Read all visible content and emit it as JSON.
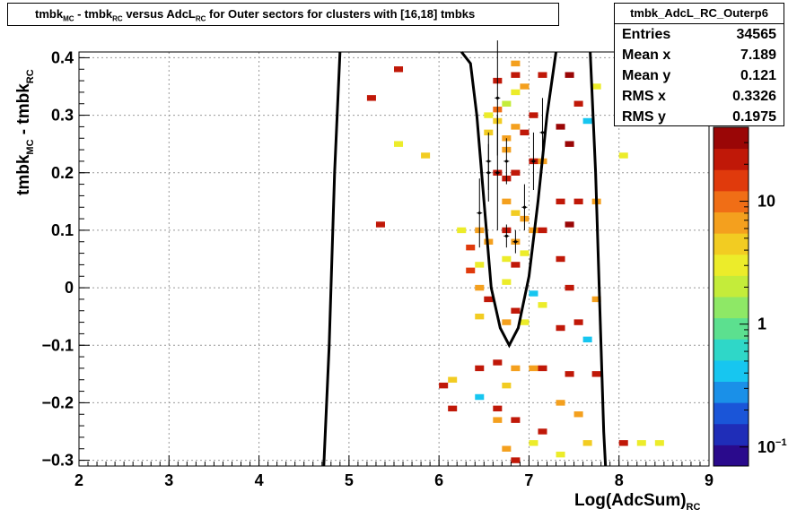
{
  "title": {
    "parts": [
      {
        "t": "tmbk",
        "s": false
      },
      {
        "t": "MC",
        "s": true
      },
      {
        "t": " - tmbk",
        "s": false
      },
      {
        "t": "RC",
        "s": true
      },
      {
        "t": " versus AdcL",
        "s": false
      },
      {
        "t": "RC",
        "s": true
      },
      {
        "t": " for Outer sectors for clusters with [16,18] tmbks",
        "s": false
      }
    ]
  },
  "stats": {
    "name": "tmbk_AdcL_RC_Outerp6",
    "rows": [
      {
        "label": "Entries",
        "value": "34565"
      },
      {
        "label": "Mean x",
        "value": "7.189"
      },
      {
        "label": "Mean y",
        "value": "0.121"
      },
      {
        "label": "RMS x",
        "value": "0.3326"
      },
      {
        "label": "RMS y",
        "value": "0.1975"
      }
    ]
  },
  "chart_data": {
    "type": "heatmap",
    "xlabel_parts": [
      {
        "t": "Log(AdcSum)",
        "s": false
      },
      {
        "t": "RC",
        "s": true
      }
    ],
    "ylabel_parts": [
      {
        "t": "tmbk",
        "s": false
      },
      {
        "t": "MC",
        "s": true
      },
      {
        "t": " - tmbk",
        "s": false
      },
      {
        "t": "RC",
        "s": true
      }
    ],
    "xlim": [
      2,
      9
    ],
    "ylim": [
      -0.31,
      0.41
    ],
    "xticks": [
      2,
      3,
      4,
      5,
      6,
      7,
      8,
      9
    ],
    "xtick_labels": [
      "2",
      "3",
      "4",
      "5",
      "6",
      "7",
      "8",
      "9"
    ],
    "yticks": [
      -0.3,
      -0.2,
      -0.1,
      0,
      0.1,
      0.2,
      0.3,
      0.4
    ],
    "ytick_labels": [
      "−0.3",
      "−0.2",
      "−0.1",
      "0",
      "0.1",
      "0.2",
      "0.3",
      "0.4"
    ],
    "grid": true,
    "z_scale": "log",
    "zlim": [
      0.07,
      40
    ],
    "z_tick_labels": [
      {
        "value": 10,
        "label": "10",
        "sup": ""
      },
      {
        "value": 1,
        "label": "1",
        "sup": ""
      },
      {
        "value": 0.1,
        "label": "10",
        "sup": "−1"
      }
    ],
    "cells": [
      [
        5.55,
        0.38,
        25
      ],
      [
        5.25,
        0.33,
        25
      ],
      [
        5.55,
        0.25,
        3
      ],
      [
        5.85,
        0.23,
        5
      ],
      [
        5.35,
        0.11,
        25
      ],
      [
        6.25,
        0.1,
        3
      ],
      [
        6.35,
        0.07,
        15
      ],
      [
        6.35,
        0.03,
        15
      ],
      [
        6.45,
        0.1,
        8
      ],
      [
        6.55,
        0.08,
        8
      ],
      [
        6.65,
        0.36,
        25
      ],
      [
        6.65,
        0.31,
        10
      ],
      [
        6.55,
        0.3,
        3
      ],
      [
        6.55,
        0.27,
        5
      ],
      [
        6.65,
        0.29,
        5
      ],
      [
        6.75,
        0.26,
        8
      ],
      [
        6.85,
        0.39,
        8
      ],
      [
        6.85,
        0.37,
        25
      ],
      [
        6.85,
        0.34,
        3
      ],
      [
        6.75,
        0.32,
        2
      ],
      [
        6.85,
        0.28,
        8
      ],
      [
        6.75,
        0.24,
        8
      ],
      [
        6.65,
        0.2,
        25
      ],
      [
        6.75,
        0.19,
        25
      ],
      [
        6.85,
        0.2,
        25
      ],
      [
        6.75,
        0.15,
        8
      ],
      [
        6.85,
        0.13,
        4
      ],
      [
        6.75,
        0.1,
        25
      ],
      [
        6.85,
        0.08,
        8
      ],
      [
        6.75,
        0.05,
        3
      ],
      [
        6.85,
        0.04,
        25
      ],
      [
        6.75,
        0.01,
        3
      ],
      [
        6.45,
        0.04,
        3
      ],
      [
        6.45,
        0.0,
        8
      ],
      [
        6.55,
        -0.02,
        25
      ],
      [
        6.45,
        -0.05,
        5
      ],
      [
        6.75,
        -0.06,
        8
      ],
      [
        6.85,
        -0.04,
        25
      ],
      [
        6.65,
        -0.13,
        25
      ],
      [
        6.45,
        -0.14,
        25
      ],
      [
        6.45,
        -0.19,
        0.4
      ],
      [
        6.85,
        -0.14,
        8
      ],
      [
        6.75,
        -0.17,
        5
      ],
      [
        6.65,
        -0.21,
        25
      ],
      [
        6.65,
        -0.23,
        8
      ],
      [
        6.85,
        -0.23,
        25
      ],
      [
        6.75,
        -0.28,
        8
      ],
      [
        6.85,
        -0.3,
        25
      ],
      [
        6.05,
        -0.17,
        25
      ],
      [
        6.15,
        -0.16,
        5
      ],
      [
        6.15,
        -0.21,
        25
      ],
      [
        6.95,
        -0.06,
        3
      ],
      [
        6.95,
        0.06,
        3
      ],
      [
        6.95,
        0.12,
        8
      ],
      [
        6.95,
        0.35,
        8
      ],
      [
        6.95,
        0.27,
        25
      ],
      [
        8.05,
        0.23,
        3
      ],
      [
        8.05,
        -0.27,
        25
      ],
      [
        8.25,
        -0.27,
        3
      ],
      [
        8.45,
        -0.27,
        3
      ],
      [
        7.05,
        0.3,
        25
      ],
      [
        7.05,
        0.22,
        25
      ],
      [
        7.05,
        0.1,
        8
      ],
      [
        7.05,
        -0.01,
        0.4
      ],
      [
        7.05,
        -0.14,
        8
      ],
      [
        7.05,
        -0.27,
        3
      ],
      [
        7.15,
        0.37,
        25
      ],
      [
        7.15,
        0.22,
        8
      ],
      [
        7.15,
        0.1,
        25
      ],
      [
        7.15,
        -0.03,
        3
      ],
      [
        7.15,
        -0.14,
        25
      ],
      [
        7.15,
        -0.25,
        25
      ],
      [
        7.45,
        0.37,
        40
      ],
      [
        7.55,
        0.32,
        25
      ],
      [
        7.45,
        0.25,
        40
      ],
      [
        7.55,
        0.15,
        25
      ],
      [
        7.65,
        0.29,
        0.4
      ],
      [
        7.45,
        0.11,
        40
      ],
      [
        7.45,
        0.0,
        25
      ],
      [
        7.55,
        -0.06,
        25
      ],
      [
        7.65,
        -0.09,
        0.4
      ],
      [
        7.45,
        -0.15,
        25
      ],
      [
        7.55,
        -0.22,
        8
      ],
      [
        7.65,
        -0.27,
        5
      ],
      [
        7.75,
        0.35,
        3
      ],
      [
        7.75,
        0.15,
        8
      ],
      [
        7.75,
        -0.02,
        8
      ],
      [
        7.75,
        -0.15,
        25
      ],
      [
        7.35,
        0.28,
        40
      ],
      [
        7.35,
        0.15,
        25
      ],
      [
        7.35,
        0.05,
        25
      ],
      [
        7.35,
        -0.07,
        25
      ],
      [
        7.35,
        -0.2,
        8
      ],
      [
        7.35,
        -0.29,
        3
      ]
    ],
    "points": [
      [
        6.45,
        0.13,
        0.06
      ],
      [
        6.55,
        0.2,
        0.05
      ],
      [
        6.55,
        0.22,
        0.05
      ],
      [
        6.65,
        0.33,
        0.1
      ],
      [
        6.65,
        0.2,
        0.1
      ],
      [
        6.75,
        0.22,
        0.04
      ],
      [
        6.75,
        0.09,
        0.02
      ],
      [
        6.85,
        0.08,
        0.02
      ],
      [
        6.95,
        0.14,
        0.04
      ],
      [
        7.05,
        0.22,
        0.05
      ],
      [
        7.15,
        0.27,
        0.06
      ]
    ]
  }
}
